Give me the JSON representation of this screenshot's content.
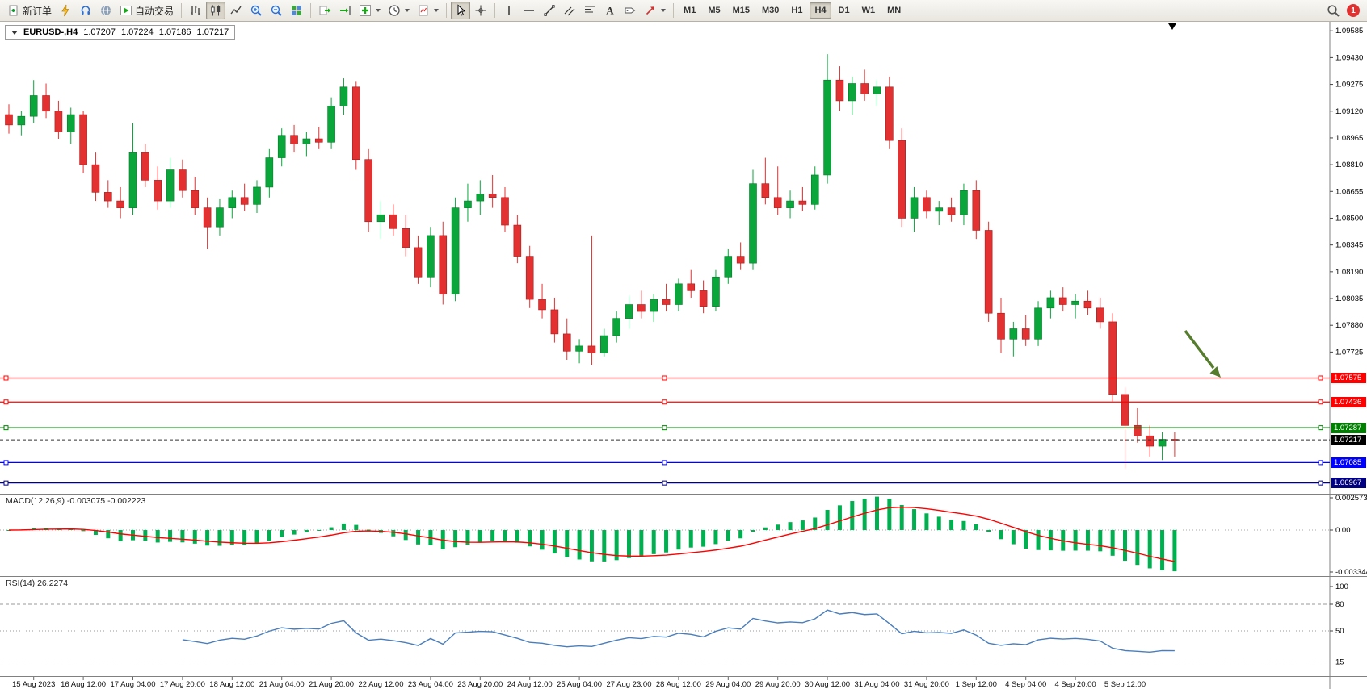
{
  "colors": {
    "bull": "#0aa63c",
    "bull_border": "#047a29",
    "bear": "#e33030",
    "bear_border": "#a81d1d",
    "macd_histogram": "#00b050",
    "macd_signal": "#ff0000",
    "rsi_line": "#4a7ebb",
    "arrow": "#567d2e",
    "line_red": "#ff0000",
    "line_green": "#008000",
    "line_blue": "#0000ff",
    "line_navy": "#000080"
  },
  "toolbar": {
    "new_order_label": "新订单",
    "auto_trading_label": "自动交易",
    "timeframes": [
      "M1",
      "M5",
      "M15",
      "M30",
      "H1",
      "H4",
      "D1",
      "W1",
      "MN"
    ],
    "active_timeframe": "H4",
    "notification_badge": "1",
    "icon_buttons": [
      "new-order",
      "expert-advisors",
      "support",
      "community",
      "auto-trading",
      "bar-chart",
      "candlestick-chart",
      "line-chart",
      "zoom-in",
      "zoom-out",
      "tile-windows",
      "auto-scroll",
      "chart-shift",
      "indicators",
      "periods",
      "templates",
      "cursor",
      "crosshair",
      "vertical-line",
      "horizontal-line",
      "trendline",
      "equidistant-channel",
      "fibonacci",
      "text",
      "text-label",
      "arrows",
      "search"
    ]
  },
  "chart": {
    "symbol_info": "EURUSD-,H4",
    "ohlc": {
      "open": "1.07207",
      "high": "1.07224",
      "low": "1.07186",
      "close": "1.07217"
    },
    "price_axis_labels": [
      "1.09585",
      "1.09430",
      "1.09275",
      "1.09120",
      "1.08965",
      "1.08810",
      "1.08655",
      "1.08500",
      "1.08345",
      "1.08190",
      "1.08035",
      "1.07880",
      "1.07725"
    ],
    "horizontal_lines": [
      {
        "price": "1.07575",
        "value": 1.07575,
        "color": "#ff0000"
      },
      {
        "price": "1.07436",
        "value": 1.07436,
        "color": "#ff0000"
      },
      {
        "price": "1.07287",
        "value": 1.07287,
        "color": "#008000"
      },
      {
        "price": "1.07085",
        "value": 1.07085,
        "color": "#0000ff"
      },
      {
        "price": "1.06967",
        "value": 1.06967,
        "color": "#000080"
      }
    ],
    "current_price": {
      "price": "1.07217",
      "value": 1.07217,
      "color": "#000000"
    }
  },
  "macd": {
    "label": "MACD(12,26,9) -0.003075 -0.002223",
    "params": [
      12,
      26,
      9
    ],
    "values": [
      -0.003075,
      -0.002223
    ],
    "axis": [
      "0.002573",
      "0.00",
      "-0.003344"
    ]
  },
  "rsi": {
    "label": "RSI(14) 26.2274",
    "params": [
      14
    ],
    "value": 26.2274,
    "axis": [
      "100",
      "80",
      "50",
      "15"
    ],
    "levels": [
      80,
      50,
      15
    ]
  },
  "chart_data": {
    "type": "candlestick",
    "symbol": "EURUSD",
    "timeframe": "H4",
    "ylim": [
      1.069,
      1.096
    ],
    "grid": false,
    "time_labels": [
      "15 Aug 2023",
      "16 Aug 12:00",
      "17 Aug 04:00",
      "17 Aug 20:00",
      "18 Aug 12:00",
      "21 Aug 04:00",
      "21 Aug 20:00",
      "22 Aug 12:00",
      "23 Aug 04:00",
      "23 Aug 20:00",
      "24 Aug 12:00",
      "25 Aug 04:00",
      "27 Aug 23:00",
      "28 Aug 12:00",
      "29 Aug 04:00",
      "29 Aug 20:00",
      "30 Aug 12:00",
      "31 Aug 04:00",
      "31 Aug 20:00",
      "1 Sep 12:00",
      "4 Sep 04:00",
      "4 Sep 20:00",
      "5 Sep 12:00"
    ],
    "ohlc": [
      [
        1.091,
        1.0916,
        1.0899,
        1.0904
      ],
      [
        1.0904,
        1.0912,
        1.0898,
        1.0909
      ],
      [
        1.0909,
        1.093,
        1.0905,
        1.0921
      ],
      [
        1.0921,
        1.0928,
        1.0908,
        1.0912
      ],
      [
        1.0912,
        1.0918,
        1.0896,
        1.09
      ],
      [
        1.09,
        1.0914,
        1.0893,
        1.091
      ],
      [
        1.091,
        1.0912,
        1.0876,
        1.0881
      ],
      [
        1.0881,
        1.0888,
        1.086,
        1.0865
      ],
      [
        1.0865,
        1.0872,
        1.0856,
        1.086
      ],
      [
        1.086,
        1.0868,
        1.085,
        1.0856
      ],
      [
        1.0856,
        1.0905,
        1.0852,
        1.0888
      ],
      [
        1.0888,
        1.0893,
        1.0868,
        1.0872
      ],
      [
        1.0872,
        1.088,
        1.0855,
        1.086
      ],
      [
        1.086,
        1.0885,
        1.0856,
        1.0878
      ],
      [
        1.0878,
        1.0884,
        1.0862,
        1.0866
      ],
      [
        1.0866,
        1.0874,
        1.0852,
        1.0856
      ],
      [
        1.0856,
        1.0862,
        1.0832,
        1.0845
      ],
      [
        1.0845,
        1.0861,
        1.084,
        1.0856
      ],
      [
        1.0856,
        1.0866,
        1.085,
        1.0862
      ],
      [
        1.0862,
        1.087,
        1.0854,
        1.0858
      ],
      [
        1.0858,
        1.0872,
        1.0853,
        1.0868
      ],
      [
        1.0868,
        1.089,
        1.0862,
        1.0885
      ],
      [
        1.0885,
        1.0902,
        1.088,
        1.0898
      ],
      [
        1.0898,
        1.0904,
        1.0888,
        1.0893
      ],
      [
        1.0893,
        1.09,
        1.0886,
        1.0896
      ],
      [
        1.0896,
        1.0903,
        1.089,
        1.0894
      ],
      [
        1.0894,
        1.092,
        1.089,
        1.0915
      ],
      [
        1.0915,
        1.0931,
        1.091,
        1.0926
      ],
      [
        1.0926,
        1.0929,
        1.0878,
        1.0884
      ],
      [
        1.0884,
        1.089,
        1.0842,
        1.0848
      ],
      [
        1.0848,
        1.086,
        1.0838,
        1.0852
      ],
      [
        1.0852,
        1.0858,
        1.084,
        1.0844
      ],
      [
        1.0844,
        1.0852,
        1.0828,
        1.0833
      ],
      [
        1.0833,
        1.084,
        1.0812,
        1.0816
      ],
      [
        1.0816,
        1.0845,
        1.081,
        1.084
      ],
      [
        1.084,
        1.0848,
        1.08,
        1.0806
      ],
      [
        1.0806,
        1.0862,
        1.0802,
        1.0856
      ],
      [
        1.0856,
        1.087,
        1.0848,
        1.086
      ],
      [
        1.086,
        1.0872,
        1.0852,
        1.0864
      ],
      [
        1.0864,
        1.0875,
        1.0856,
        1.0862
      ],
      [
        1.0862,
        1.0868,
        1.0842,
        1.0846
      ],
      [
        1.0846,
        1.0852,
        1.0824,
        1.0828
      ],
      [
        1.0828,
        1.0834,
        1.0798,
        1.0803
      ],
      [
        1.0803,
        1.0812,
        1.0792,
        1.0797
      ],
      [
        1.0797,
        1.0804,
        1.0778,
        1.0783
      ],
      [
        1.0783,
        1.0792,
        1.0768,
        1.0773
      ],
      [
        1.0773,
        1.078,
        1.0766,
        1.0776
      ],
      [
        1.0776,
        1.084,
        1.0765,
        1.0772
      ],
      [
        1.0772,
        1.0786,
        1.077,
        1.0782
      ],
      [
        1.0782,
        1.0796,
        1.0778,
        1.0792
      ],
      [
        1.0792,
        1.0805,
        1.0786,
        1.08
      ],
      [
        1.08,
        1.0808,
        1.0792,
        1.0796
      ],
      [
        1.0796,
        1.0806,
        1.079,
        1.0803
      ],
      [
        1.0803,
        1.0812,
        1.0796,
        1.08
      ],
      [
        1.08,
        1.0815,
        1.0796,
        1.0812
      ],
      [
        1.0812,
        1.082,
        1.0804,
        1.0808
      ],
      [
        1.0808,
        1.0814,
        1.0795,
        1.0799
      ],
      [
        1.0799,
        1.082,
        1.0796,
        1.0816
      ],
      [
        1.0816,
        1.0832,
        1.0812,
        1.0828
      ],
      [
        1.0828,
        1.0836,
        1.082,
        1.0824
      ],
      [
        1.0824,
        1.0878,
        1.082,
        1.087
      ],
      [
        1.087,
        1.0885,
        1.0858,
        1.0862
      ],
      [
        1.0862,
        1.088,
        1.0852,
        1.0856
      ],
      [
        1.0856,
        1.0866,
        1.085,
        1.086
      ],
      [
        1.086,
        1.0868,
        1.0854,
        1.0858
      ],
      [
        1.0858,
        1.088,
        1.0855,
        1.0875
      ],
      [
        1.0875,
        1.0945,
        1.087,
        1.093
      ],
      [
        1.093,
        1.0938,
        1.0912,
        1.0918
      ],
      [
        1.0918,
        1.0932,
        1.091,
        1.0928
      ],
      [
        1.0928,
        1.0936,
        1.0918,
        1.0922
      ],
      [
        1.0922,
        1.093,
        1.0915,
        1.0926
      ],
      [
        1.0926,
        1.0932,
        1.089,
        1.0895
      ],
      [
        1.0895,
        1.0902,
        1.0845,
        1.085
      ],
      [
        1.085,
        1.0868,
        1.0842,
        1.0862
      ],
      [
        1.0862,
        1.0866,
        1.085,
        1.0854
      ],
      [
        1.0854,
        1.086,
        1.0846,
        1.0856
      ],
      [
        1.0856,
        1.0862,
        1.0848,
        1.0852
      ],
      [
        1.0852,
        1.087,
        1.0846,
        1.0866
      ],
      [
        1.0866,
        1.0872,
        1.0838,
        1.0843
      ],
      [
        1.0843,
        1.0848,
        1.079,
        1.0795
      ],
      [
        1.0795,
        1.0804,
        1.0772,
        1.078
      ],
      [
        1.078,
        1.079,
        1.077,
        1.0786
      ],
      [
        1.0786,
        1.0794,
        1.0776,
        1.078
      ],
      [
        1.078,
        1.0802,
        1.0776,
        1.0798
      ],
      [
        1.0798,
        1.0808,
        1.0792,
        1.0804
      ],
      [
        1.0804,
        1.081,
        1.0796,
        1.08
      ],
      [
        1.08,
        1.0806,
        1.0792,
        1.0802
      ],
      [
        1.0802,
        1.0808,
        1.0794,
        1.0798
      ],
      [
        1.0798,
        1.0804,
        1.0786,
        1.079
      ],
      [
        1.079,
        1.0795,
        1.0744,
        1.0748
      ],
      [
        1.0748,
        1.0752,
        1.0705,
        1.073
      ],
      [
        1.073,
        1.074,
        1.072,
        1.0724
      ],
      [
        1.0724,
        1.073,
        1.0712,
        1.0718
      ],
      [
        1.0718,
        1.0726,
        1.071,
        1.0722
      ],
      [
        1.0722,
        1.0726,
        1.0712,
        1.07217
      ]
    ],
    "indicators": [
      {
        "type": "MACD",
        "params": [
          12,
          26,
          9
        ],
        "last_values": [
          -0.003075,
          -0.002223
        ],
        "ylim": [
          -0.003344,
          0.002573
        ]
      },
      {
        "type": "RSI",
        "params": [
          14
        ],
        "last_value": 26.2274,
        "levels": [
          80,
          50,
          15
        ],
        "ylim": [
          0,
          100
        ]
      }
    ]
  }
}
